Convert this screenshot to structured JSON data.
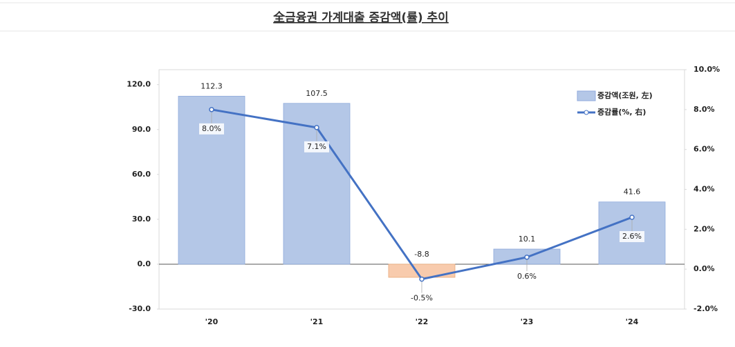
{
  "chart_data": {
    "type": "bar-line",
    "title": "全금융권 가계대출 증감액(률) 추이",
    "categories": [
      "'20",
      "'21",
      "'22",
      "'23",
      "'24"
    ],
    "series": [
      {
        "name": "증감액(조원, 左)",
        "type": "bar",
        "color": "#b4c7e7",
        "negative_color": "#f8cbad",
        "values": [
          112.3,
          107.5,
          -8.8,
          10.1,
          41.6
        ]
      },
      {
        "name": "증감률(%, 右)",
        "type": "line",
        "axis": "y2",
        "color": "#4472c4",
        "values": [
          8.0,
          7.1,
          -0.5,
          0.6,
          2.6
        ],
        "value_labels": [
          "8.0%",
          "7.1%",
          "-0.5%",
          "0.6%",
          "2.6%"
        ]
      }
    ],
    "ylim": [
      -30,
      130
    ],
    "yticks": [
      {
        "value": -30,
        "label": "-30.0"
      },
      {
        "value": 0,
        "label": "0.0"
      },
      {
        "value": 30,
        "label": "30.0"
      },
      {
        "value": 60,
        "label": "60.0"
      },
      {
        "value": 90,
        "label": "90.0"
      },
      {
        "value": 120,
        "label": "120.0"
      }
    ],
    "y2lim": [
      -2,
      10
    ],
    "y2ticks": [
      {
        "value": -2,
        "label": "-2.0%"
      },
      {
        "value": 0,
        "label": "0.0%"
      },
      {
        "value": 2,
        "label": "2.0%"
      },
      {
        "value": 4,
        "label": "4.0%"
      },
      {
        "value": 6,
        "label": "6.0%"
      },
      {
        "value": 8,
        "label": "8.0%"
      },
      {
        "value": 10,
        "label": "10.0%"
      }
    ],
    "legend": "upper right"
  }
}
